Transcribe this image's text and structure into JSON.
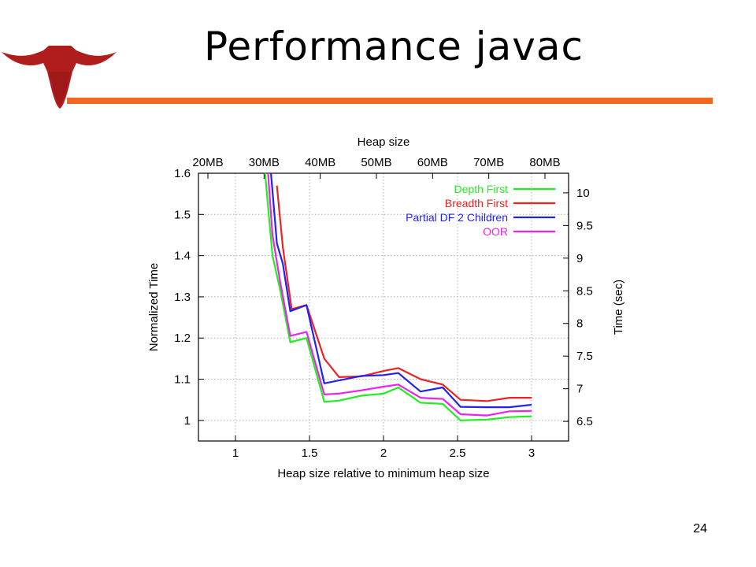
{
  "slide": {
    "title": "Performance javac",
    "page_number": "24"
  },
  "colors": {
    "accent_rule": "#f26522",
    "logo": "#b01d1d"
  },
  "chart_data": {
    "type": "line",
    "title": "",
    "xlabel": "Heap size relative to minimum heap size",
    "ylabel": "Normalized Time",
    "y2label": "Time (sec)",
    "x2label": "Heap size",
    "xlim": [
      0.75,
      3.25
    ],
    "ylim": [
      0.95,
      1.6
    ],
    "y2lim": [
      6.2,
      10.3
    ],
    "grid": true,
    "legend_position": "top-right",
    "x_ticks": [
      "1",
      "1.5",
      "2",
      "2.5",
      "3"
    ],
    "y_ticks": [
      "1",
      "1.1",
      "1.2",
      "1.3",
      "1.4",
      "1.5",
      "1.6"
    ],
    "y2_ticks": [
      "6.5",
      "7",
      "7.5",
      "8",
      "8.5",
      "9",
      "9.5",
      "10"
    ],
    "x2_ticks": [
      "20MB",
      "30MB",
      "40MB",
      "50MB",
      "60MB",
      "70MB",
      "80MB"
    ],
    "series": [
      {
        "name": "Depth First",
        "color": "#22ee22",
        "points": [
          [
            1.2,
            1.6
          ],
          [
            1.25,
            1.4
          ],
          [
            1.3,
            1.32
          ],
          [
            1.37,
            1.19
          ],
          [
            1.48,
            1.2
          ],
          [
            1.6,
            1.045
          ],
          [
            1.7,
            1.048
          ],
          [
            1.85,
            1.06
          ],
          [
            2.0,
            1.065
          ],
          [
            2.1,
            1.08
          ],
          [
            2.25,
            1.043
          ],
          [
            2.4,
            1.04
          ],
          [
            2.52,
            1.0
          ],
          [
            2.7,
            1.002
          ],
          [
            2.85,
            1.008
          ],
          [
            3.0,
            1.01
          ]
        ]
      },
      {
        "name": "Breadth First",
        "color": "#ee2222",
        "points": [
          [
            1.28,
            1.57
          ],
          [
            1.32,
            1.42
          ],
          [
            1.38,
            1.27
          ],
          [
            1.48,
            1.28
          ],
          [
            1.6,
            1.15
          ],
          [
            1.7,
            1.105
          ],
          [
            1.85,
            1.107
          ],
          [
            2.0,
            1.12
          ],
          [
            2.1,
            1.127
          ],
          [
            2.25,
            1.1
          ],
          [
            2.4,
            1.087
          ],
          [
            2.52,
            1.05
          ],
          [
            2.7,
            1.047
          ],
          [
            2.85,
            1.055
          ],
          [
            3.0,
            1.055
          ]
        ]
      },
      {
        "name": "Partial DF 2 Children",
        "color": "#2222ee",
        "points": [
          [
            1.24,
            1.6
          ],
          [
            1.28,
            1.43
          ],
          [
            1.32,
            1.38
          ],
          [
            1.37,
            1.265
          ],
          [
            1.48,
            1.28
          ],
          [
            1.6,
            1.09
          ],
          [
            1.7,
            1.097
          ],
          [
            1.85,
            1.108
          ],
          [
            2.0,
            1.11
          ],
          [
            2.1,
            1.115
          ],
          [
            2.25,
            1.07
          ],
          [
            2.4,
            1.08
          ],
          [
            2.52,
            1.033
          ],
          [
            2.7,
            1.032
          ],
          [
            2.85,
            1.032
          ],
          [
            3.0,
            1.038
          ]
        ]
      },
      {
        "name": "OOR",
        "color": "#ee22ee",
        "points": [
          [
            1.22,
            1.6
          ],
          [
            1.25,
            1.45
          ],
          [
            1.3,
            1.34
          ],
          [
            1.37,
            1.205
          ],
          [
            1.48,
            1.215
          ],
          [
            1.6,
            1.063
          ],
          [
            1.7,
            1.065
          ],
          [
            1.85,
            1.073
          ],
          [
            2.0,
            1.082
          ],
          [
            2.1,
            1.087
          ],
          [
            2.25,
            1.055
          ],
          [
            2.4,
            1.052
          ],
          [
            2.52,
            1.015
          ],
          [
            2.7,
            1.012
          ],
          [
            2.85,
            1.022
          ],
          [
            3.0,
            1.023
          ]
        ]
      }
    ]
  }
}
